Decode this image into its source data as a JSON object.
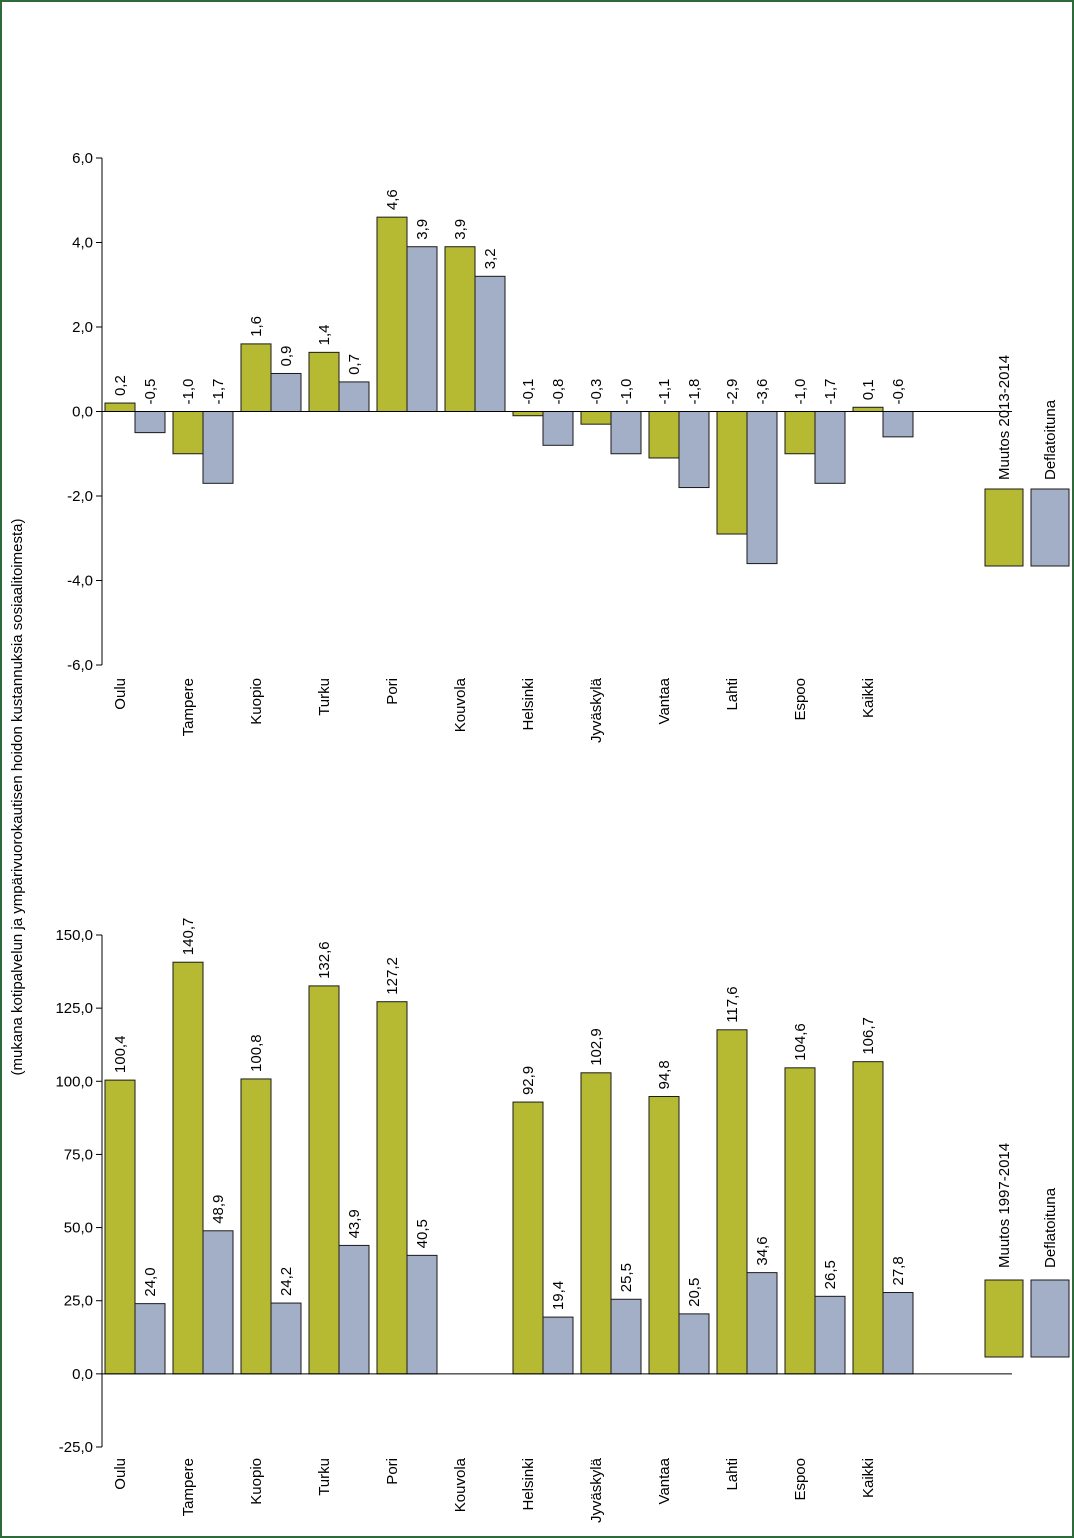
{
  "colors": {
    "series1": "#b5ba32",
    "series2": "#a3afc6",
    "frame": "#2e6b3a"
  },
  "y_axis_label": "(mukana kotipalvelun ja ympärivuorokautisen hoidon kustannuksia sosiaalitoimesta)",
  "chart_data": [
    {
      "type": "bar",
      "orientation": "rotated-90",
      "categories": [
        "Oulu",
        "Tampere",
        "Kuopio",
        "Turku",
        "Pori",
        "Kouvola",
        "Helsinki",
        "Jyväskylä",
        "Vantaa",
        "Lahti",
        "Espoo",
        "Kaikki"
      ],
      "series": [
        {
          "name": "Muutos 2013-2014",
          "values": [
            0.2,
            -1.0,
            1.6,
            1.4,
            4.6,
            3.9,
            -0.1,
            -0.3,
            -1.1,
            -2.9,
            -1.0,
            0.1
          ],
          "labels": [
            "0,2",
            "-1,0",
            "1,6",
            "1,4",
            "4,6",
            "3,9",
            "-0,1",
            "-0,3",
            "-1,1",
            "-2,9",
            "-1,0",
            "0,1"
          ]
        },
        {
          "name": "Deflatoituna",
          "values": [
            -0.5,
            -1.7,
            0.9,
            0.7,
            3.9,
            3.2,
            -0.8,
            -1.0,
            -1.8,
            -3.6,
            -1.7,
            -0.6
          ],
          "labels": [
            "-0,5",
            "-1,7",
            "0,9",
            "0,7",
            "3,9",
            "3,2",
            "-0,8",
            "-1,0",
            "-1,8",
            "-3,6",
            "-1,7",
            "-0,6"
          ]
        }
      ],
      "ylim": [
        -6,
        6
      ],
      "ticks": [
        -6,
        -4,
        -2,
        0,
        2,
        4,
        6
      ],
      "tick_labels": [
        "-6,0",
        "-4,0",
        "-2,0",
        "0,0",
        "2,0",
        "4,0",
        "6,0"
      ],
      "legend": "right",
      "grid": false
    },
    {
      "type": "bar",
      "orientation": "rotated-90",
      "categories": [
        "Oulu",
        "Tampere",
        "Kuopio",
        "Turku",
        "Pori",
        "Kouvola",
        "Helsinki",
        "Jyväskylä",
        "Vantaa",
        "Lahti",
        "Espoo",
        "Kaikki"
      ],
      "series": [
        {
          "name": "Muutos 1997-2014",
          "values": [
            100.4,
            140.7,
            100.8,
            132.6,
            127.2,
            null,
            92.9,
            102.9,
            94.8,
            117.6,
            104.6,
            106.7
          ],
          "labels": [
            "100,4",
            "140,7",
            "100,8",
            "132,6",
            "127,2",
            "",
            "92,9",
            "102,9",
            "94,8",
            "117,6",
            "104,6",
            "106,7"
          ]
        },
        {
          "name": "Deflatoituna",
          "values": [
            24.0,
            48.9,
            24.2,
            43.9,
            40.5,
            null,
            19.4,
            25.5,
            20.5,
            34.6,
            26.5,
            27.8
          ],
          "labels": [
            "24,0",
            "48,9",
            "24,2",
            "43,9",
            "40,5",
            "",
            "19,4",
            "25,5",
            "20,5",
            "34,6",
            "26,5",
            "27,8"
          ]
        }
      ],
      "ylim": [
        -25,
        150
      ],
      "ticks": [
        -25,
        0,
        25,
        50,
        75,
        100,
        125,
        150
      ],
      "tick_labels": [
        "-25,0",
        "0,0",
        "25,0",
        "50,0",
        "75,0",
        "100,0",
        "125,0",
        "150,0"
      ],
      "legend": "right",
      "grid": false
    }
  ]
}
